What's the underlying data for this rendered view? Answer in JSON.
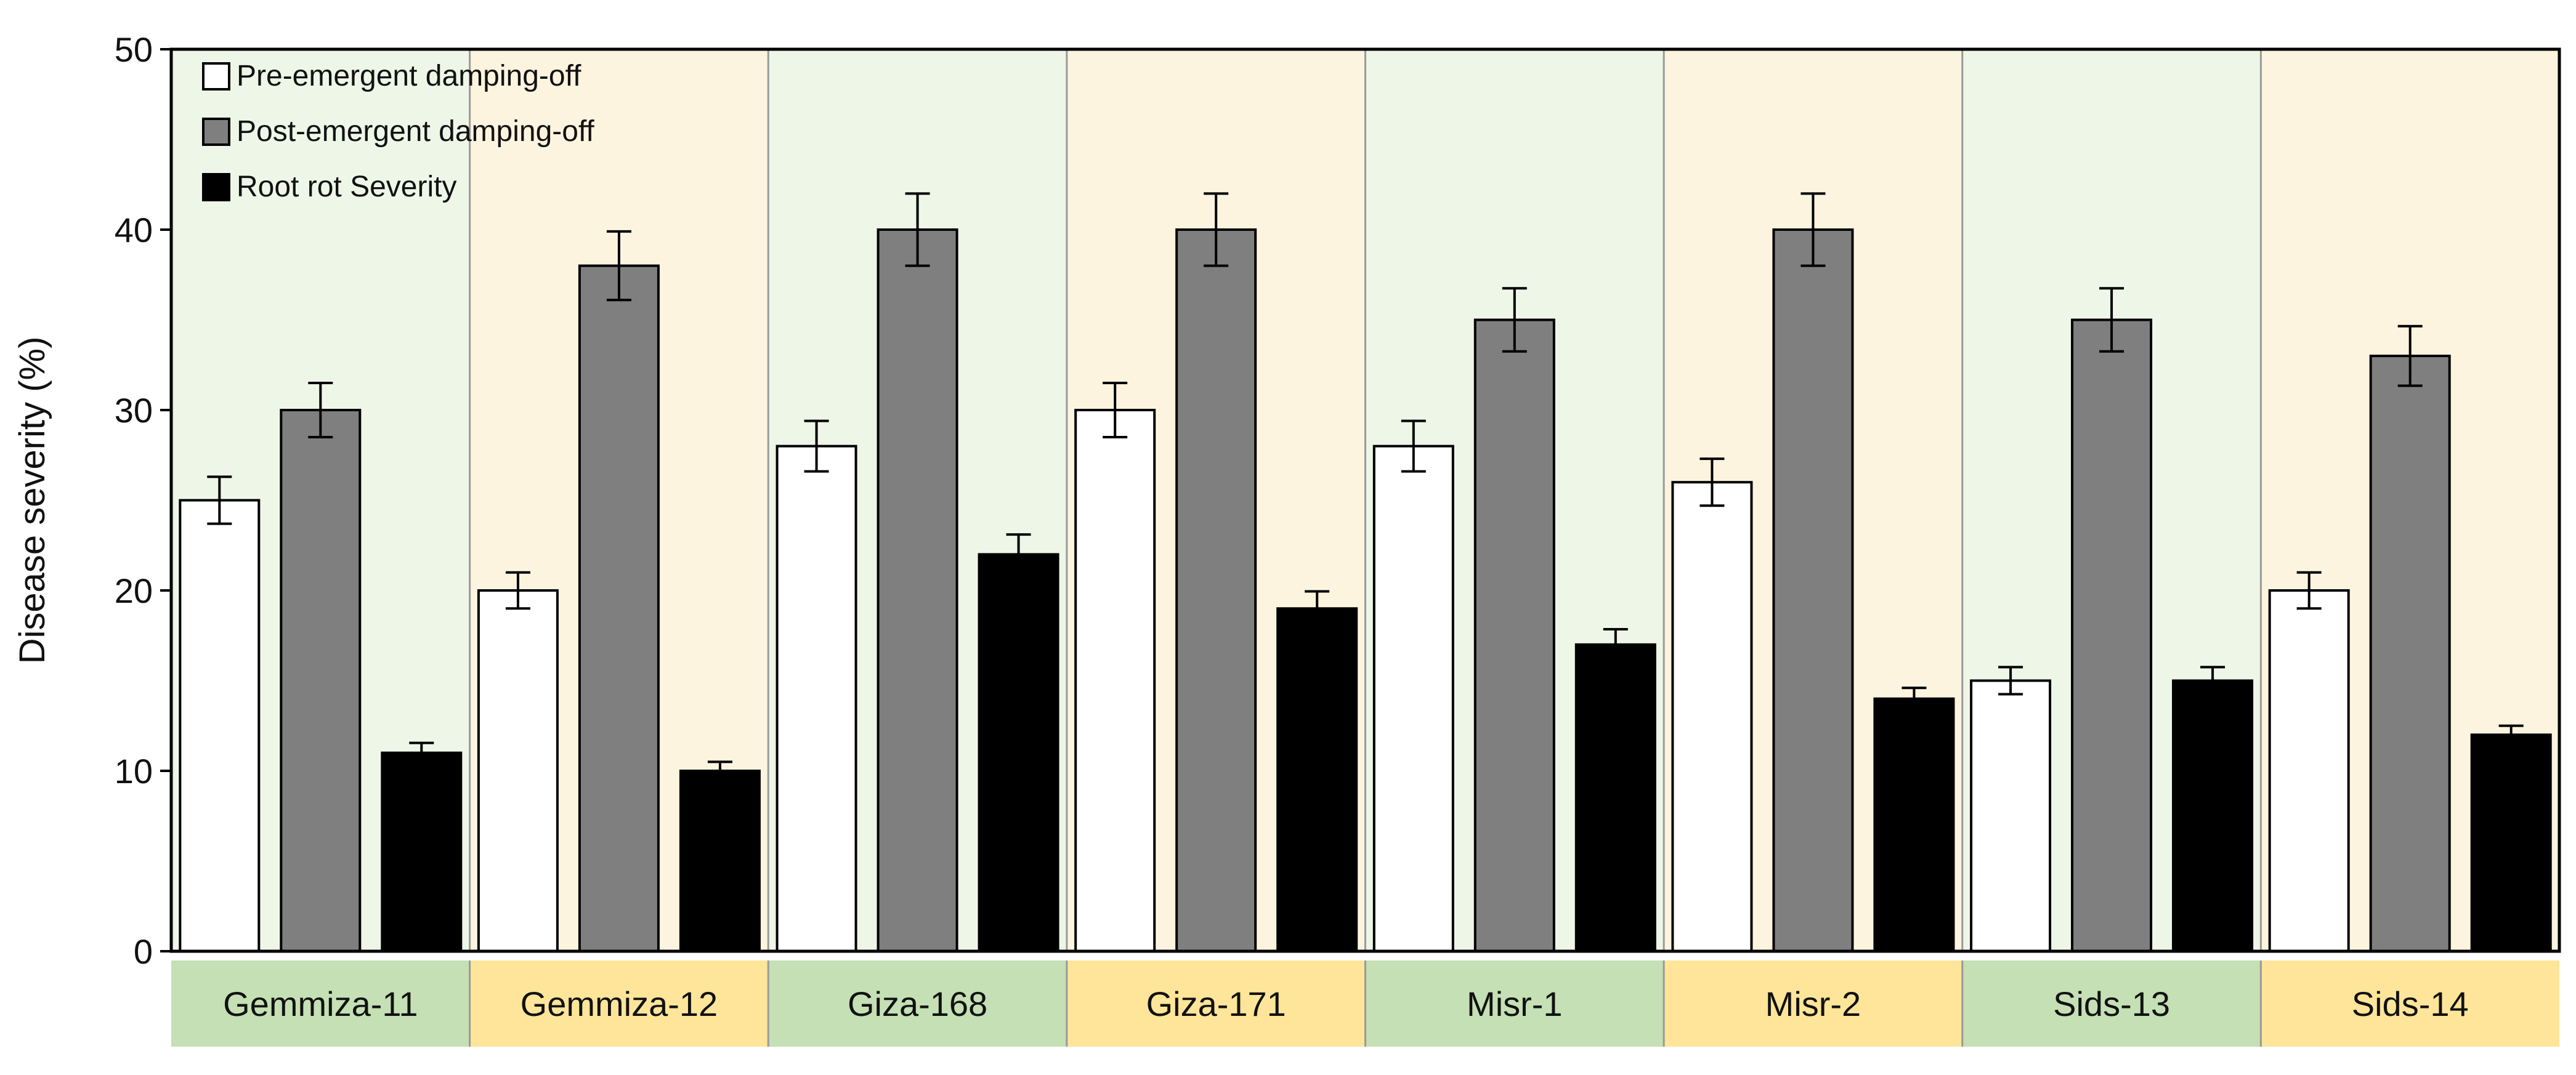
{
  "chart_data": {
    "type": "bar",
    "title": "",
    "xlabel": "",
    "ylabel": "Disease severity (%)",
    "ylim": [
      0,
      50
    ],
    "yticks": [
      0,
      10,
      20,
      30,
      40,
      50
    ],
    "grid": false,
    "legend_position": "top-left",
    "categories": [
      "Gemmiza-11",
      "Gemmiza-12",
      "Giza-168",
      "Giza-171",
      "Misr-1",
      "Misr-2",
      "Sids-13",
      "Sids-14"
    ],
    "series": [
      {
        "name": "Pre-emergent damping-off",
        "color": "#ffffff",
        "values": [
          25,
          20,
          28,
          30,
          28,
          26,
          15,
          20
        ],
        "errors": [
          1.3,
          1.0,
          1.4,
          1.5,
          1.4,
          1.3,
          0.75,
          1.0
        ]
      },
      {
        "name": "Post-emergent damping-off",
        "color": "#7f7f7f",
        "values": [
          30,
          38,
          40,
          40,
          35,
          40,
          35,
          33
        ],
        "errors": [
          1.5,
          1.9,
          2.0,
          2.0,
          1.75,
          2.0,
          1.75,
          1.65
        ]
      },
      {
        "name": "Root rot Severity",
        "color": "#000000",
        "values": [
          11,
          10,
          22,
          19,
          17,
          14,
          15,
          12
        ],
        "errors": [
          0.55,
          0.5,
          1.1,
          0.95,
          0.85,
          0.6,
          0.75,
          0.5
        ]
      }
    ],
    "category_band_colors": [
      "#eef6e8",
      "#fdf4df"
    ],
    "category_label_colors": [
      "#c5e0b4",
      "#ffe599"
    ]
  }
}
